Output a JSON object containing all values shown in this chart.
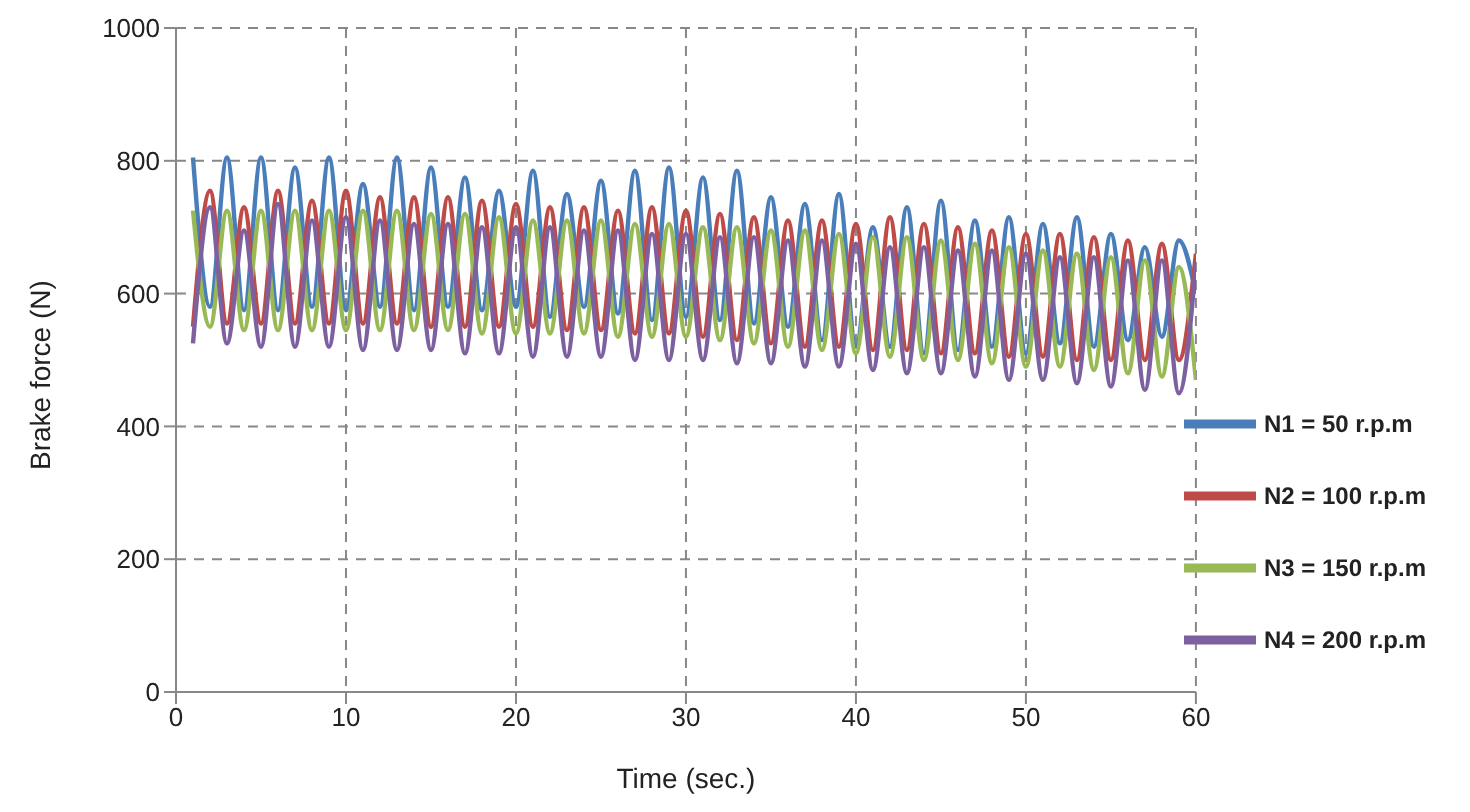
{
  "chart_data": {
    "type": "line",
    "xlabel": "Time (sec.)",
    "ylabel": "Brake force (N)",
    "xlim": [
      0,
      60
    ],
    "xticks": [
      0,
      10,
      20,
      30,
      40,
      50,
      60
    ],
    "ylim": [
      0,
      1000
    ],
    "yticks": [
      0,
      200,
      400,
      600,
      800,
      1000
    ],
    "grid": true,
    "legend": "bottom right",
    "line_style": "solid",
    "x": [
      1,
      2,
      3,
      4,
      5,
      6,
      7,
      8,
      9,
      10,
      11,
      12,
      13,
      14,
      15,
      16,
      17,
      18,
      19,
      20,
      21,
      22,
      23,
      24,
      25,
      26,
      27,
      28,
      29,
      30,
      31,
      32,
      33,
      34,
      35,
      36,
      37,
      38,
      39,
      40,
      41,
      42,
      43,
      44,
      45,
      46,
      47,
      48,
      49,
      50,
      51,
      52,
      53,
      54,
      55,
      56,
      57,
      58,
      59,
      60
    ],
    "series": [
      {
        "name": "N1 = 50 r.p.m",
        "color": "#4a7ebb",
        "values": [
          805,
          580,
          805,
          575,
          805,
          575,
          790,
          580,
          805,
          575,
          765,
          580,
          805,
          575,
          790,
          580,
          775,
          575,
          755,
          580,
          785,
          565,
          750,
          580,
          770,
          570,
          785,
          560,
          790,
          565,
          775,
          560,
          785,
          555,
          745,
          550,
          735,
          530,
          750,
          520,
          700,
          520,
          730,
          510,
          740,
          515,
          710,
          520,
          715,
          510,
          705,
          525,
          715,
          520,
          690,
          530,
          670,
          535,
          680,
          600
        ]
      },
      {
        "name": "N2 = 100 r.p.m",
        "color": "#be4b48",
        "values": [
          550,
          755,
          555,
          730,
          555,
          755,
          555,
          740,
          555,
          755,
          555,
          745,
          555,
          745,
          550,
          745,
          550,
          740,
          550,
          735,
          550,
          730,
          545,
          730,
          545,
          725,
          540,
          730,
          540,
          725,
          535,
          720,
          530,
          715,
          525,
          710,
          520,
          710,
          520,
          705,
          515,
          715,
          515,
          705,
          510,
          700,
          510,
          695,
          505,
          690,
          505,
          690,
          500,
          685,
          500,
          680,
          500,
          675,
          500,
          660
        ]
      },
      {
        "name": "N3 = 150 r.p.m",
        "color": "#98b954",
        "values": [
          725,
          550,
          725,
          545,
          725,
          545,
          725,
          545,
          725,
          545,
          725,
          545,
          725,
          545,
          720,
          545,
          720,
          540,
          715,
          540,
          710,
          540,
          710,
          540,
          710,
          535,
          705,
          535,
          705,
          535,
          700,
          530,
          700,
          525,
          695,
          520,
          695,
          515,
          690,
          510,
          685,
          505,
          685,
          500,
          680,
          500,
          675,
          495,
          670,
          490,
          665,
          490,
          660,
          485,
          655,
          480,
          650,
          475,
          640,
          470
        ]
      },
      {
        "name": "N4 = 200 r.p.m",
        "color": "#7d60a0",
        "values": [
          525,
          730,
          525,
          695,
          520,
          735,
          520,
          710,
          520,
          715,
          515,
          710,
          515,
          705,
          515,
          705,
          510,
          700,
          510,
          700,
          505,
          700,
          505,
          695,
          505,
          695,
          500,
          690,
          500,
          690,
          500,
          685,
          495,
          685,
          495,
          680,
          490,
          680,
          490,
          675,
          485,
          670,
          480,
          670,
          480,
          665,
          475,
          665,
          470,
          660,
          470,
          655,
          465,
          655,
          460,
          650,
          455,
          650,
          450,
          645
        ]
      }
    ]
  }
}
